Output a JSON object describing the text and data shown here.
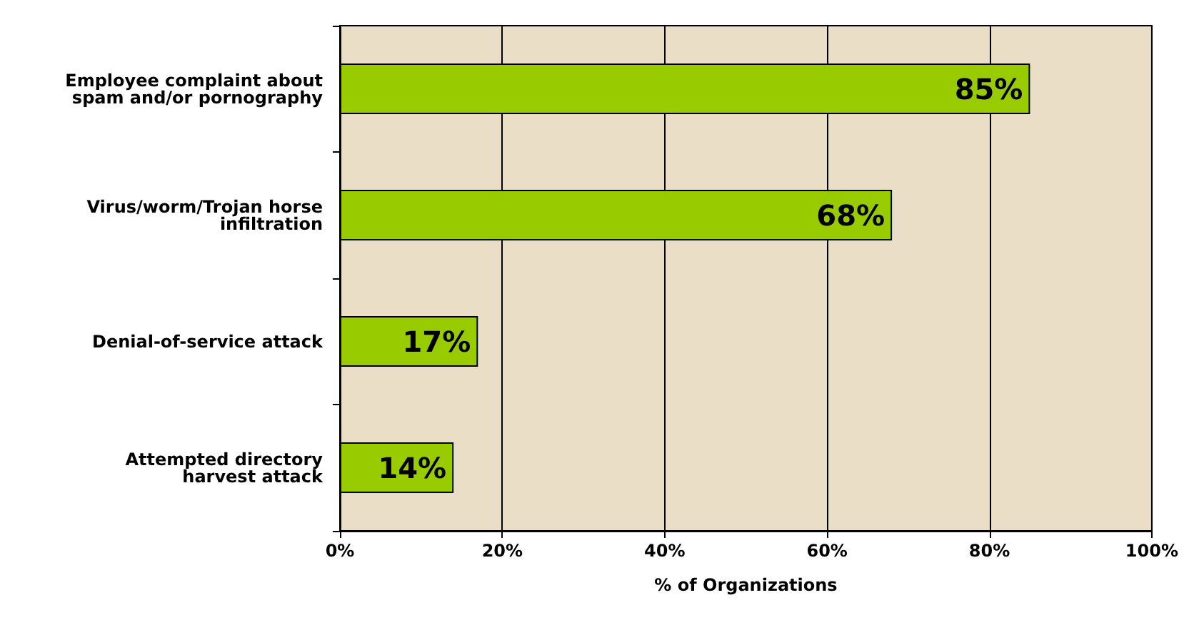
{
  "chart_data": {
    "type": "bar",
    "orientation": "horizontal",
    "xlabel": "% of Organizations",
    "categories": [
      "Employee complaint about\nspam and/or pornography",
      "Virus/worm/Trojan horse\ninfiltration",
      "Denial-of-service attack",
      "Attempted directory\nharvest attack"
    ],
    "values": [
      85,
      68,
      17,
      14
    ],
    "value_labels": [
      "85%",
      "68%",
      "17%",
      "14%"
    ],
    "color": "#99cc00",
    "xlim": [
      0,
      100
    ],
    "xticks": [
      {
        "value": 0,
        "label": "0%"
      },
      {
        "value": 20,
        "label": "20%"
      },
      {
        "value": 40,
        "label": "40%"
      },
      {
        "value": 60,
        "label": "60%"
      },
      {
        "value": 80,
        "label": "80%"
      },
      {
        "value": 100,
        "label": "100%"
      }
    ],
    "grid": "x"
  }
}
